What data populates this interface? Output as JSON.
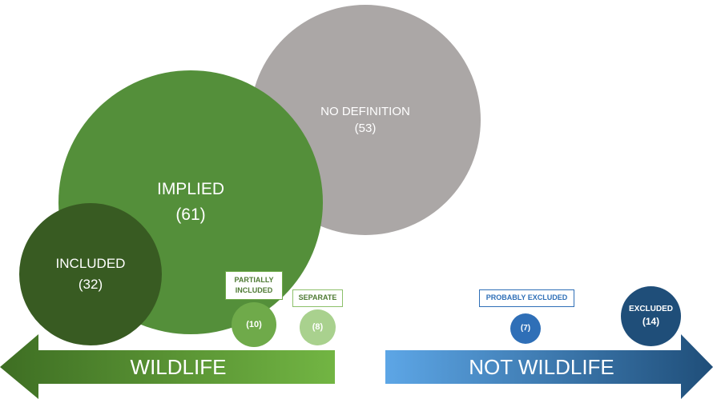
{
  "colors": {
    "no_definition": "#ABA7A6",
    "implied": "#548F3A",
    "included": "#385B22",
    "partially_included": "#6FAA4A",
    "separate": "#A9D18E",
    "probably_excluded": "#2F6FB7",
    "excluded": "#1F4E79"
  },
  "circles": {
    "no_definition": {
      "label": "NO DEFINITION",
      "count": "(53)"
    },
    "implied": {
      "label": "IMPLIED",
      "count": "(61)"
    },
    "included": {
      "label": "INCLUDED",
      "count": "(32)"
    },
    "partially_included": {
      "label_line1": "PARTIALLY",
      "label_line2": "INCLUDED",
      "count": "(10)"
    },
    "separate": {
      "label": "SEPARATE",
      "count": "(8)"
    },
    "probably_excluded": {
      "label": "PROBABLY EXCLUDED",
      "count": "(7)"
    },
    "excluded": {
      "label": "EXCLUDED",
      "count": "(14)"
    }
  },
  "arrows": {
    "left_label": "WILDLIFE",
    "right_label": "NOT WILDLIFE"
  }
}
